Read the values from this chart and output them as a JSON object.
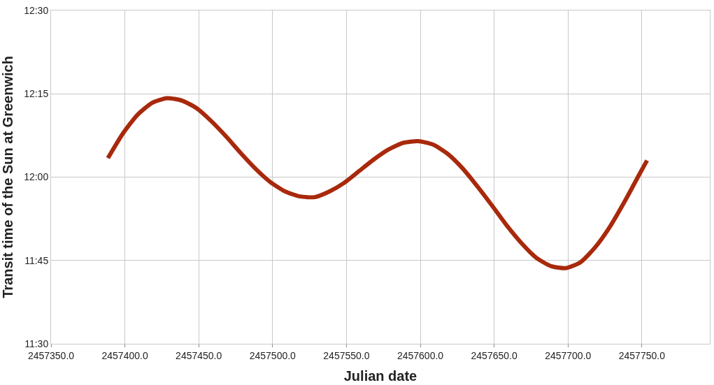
{
  "chart_data": {
    "type": "line",
    "xlabel": "Julian date",
    "ylabel": "Transit time of the Sun at Greenwich",
    "series": [
      {
        "color": "#a8290c",
        "x": [
          2457388.5,
          2457398.5,
          2457408.5,
          2457418.5,
          2457428.5,
          2457438.5,
          2457448.5,
          2457458.5,
          2457468.5,
          2457478.5,
          2457488.5,
          2457498.5,
          2457508.5,
          2457518.5,
          2457528.5,
          2457538.5,
          2457548.5,
          2457558.5,
          2457568.5,
          2457578.5,
          2457588.5,
          2457598.5,
          2457608.5,
          2457618.5,
          2457628.5,
          2457638.5,
          2457648.5,
          2457658.5,
          2457668.5,
          2457678.5,
          2457688.5,
          2457698.5,
          2457708.5,
          2457718.5,
          2457728.5,
          2457738.5,
          2457748.5,
          2457753.5
        ],
        "values": [
          12.057,
          12.13,
          12.187,
          12.223,
          12.237,
          12.23,
          12.207,
          12.168,
          12.122,
          12.072,
          12.025,
          11.985,
          11.957,
          11.942,
          11.94,
          11.957,
          11.983,
          12.018,
          12.053,
          12.083,
          12.103,
          12.108,
          12.098,
          12.07,
          12.027,
          11.973,
          11.915,
          11.855,
          11.802,
          11.758,
          11.733,
          11.727,
          11.745,
          11.79,
          11.852,
          11.928,
          12.01,
          12.05
        ]
      }
    ],
    "xlim": [
      2457350,
      2457796
    ],
    "ylim": [
      11.5,
      12.5
    ],
    "xticks": [
      {
        "value": 2457350,
        "label": "2457350.0"
      },
      {
        "value": 2457400,
        "label": "2457400.0"
      },
      {
        "value": 2457450,
        "label": "2457450.0"
      },
      {
        "value": 2457500,
        "label": "2457500.0"
      },
      {
        "value": 2457550,
        "label": "2457550.0"
      },
      {
        "value": 2457600,
        "label": "2457600.0"
      },
      {
        "value": 2457650,
        "label": "2457650.0"
      },
      {
        "value": 2457700,
        "label": "2457700.0"
      },
      {
        "value": 2457750,
        "label": "2457750.0"
      }
    ],
    "yticks": [
      {
        "value": 11.5,
        "label": "11:30"
      },
      {
        "value": 11.75,
        "label": "11:45"
      },
      {
        "value": 12.0,
        "label": "12:00"
      },
      {
        "value": 12.25,
        "label": "12:15"
      },
      {
        "value": 12.5,
        "label": "12:30"
      }
    ],
    "grid": true,
    "marker": "none",
    "line_style": "solid"
  }
}
